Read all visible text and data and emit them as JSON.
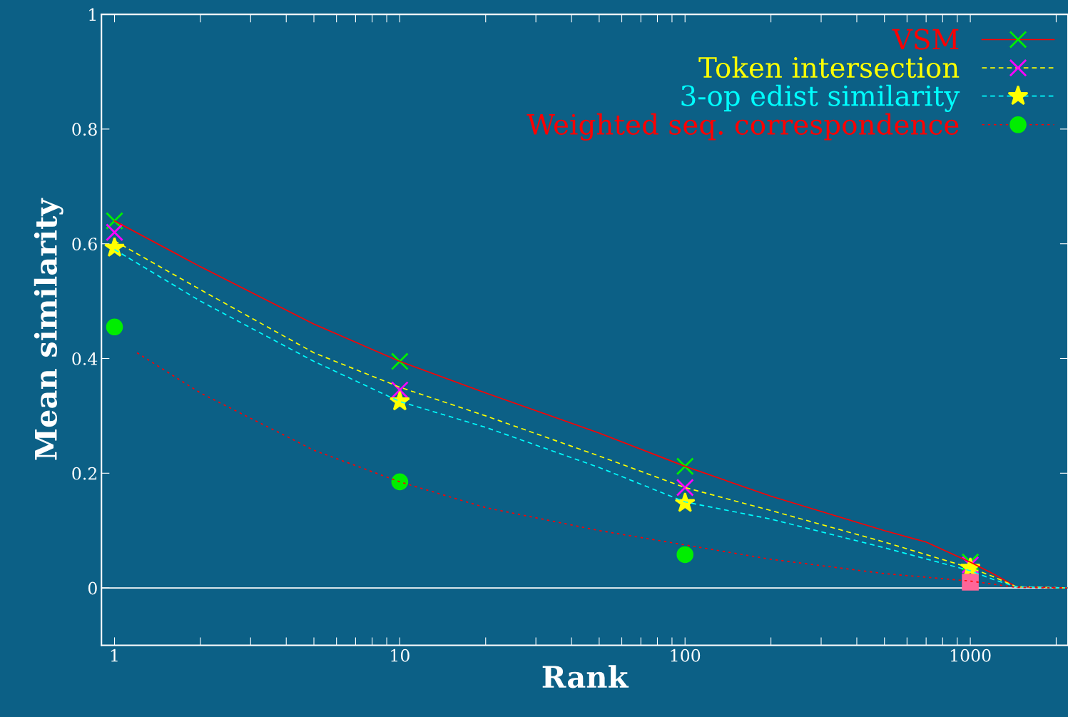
{
  "chart_data": {
    "type": "line",
    "xlabel": "Rank",
    "ylabel": "Mean similarity",
    "log": "x",
    "xlim": [
      0.9,
      2200
    ],
    "ylim": [
      -0.1,
      1
    ],
    "xticks": [
      1,
      {
        "value": 2,
        "label": null
      },
      {
        "value": 3,
        "label": null
      },
      {
        "value": 4,
        "label": null
      },
      {
        "value": 5,
        "label": null
      },
      {
        "value": 6,
        "label": null
      },
      {
        "value": 7,
        "label": null
      },
      {
        "value": 8,
        "label": null
      },
      {
        "value": 9,
        "label": null
      },
      10,
      {
        "value": 20,
        "label": null
      },
      {
        "value": 30,
        "label": null
      },
      {
        "value": 40,
        "label": null
      },
      {
        "value": 50,
        "label": null
      },
      {
        "value": 60,
        "label": null
      },
      {
        "value": 70,
        "label": null
      },
      {
        "value": 80,
        "label": null
      },
      {
        "value": 90,
        "label": null
      },
      100,
      {
        "value": 200,
        "label": null
      },
      {
        "value": 300,
        "label": null
      },
      {
        "value": 400,
        "label": null
      },
      {
        "value": 500,
        "label": null
      },
      {
        "value": 600,
        "label": null
      },
      {
        "value": 700,
        "label": null
      },
      {
        "value": 800,
        "label": null
      },
      {
        "value": 900,
        "label": null
      },
      1000,
      {
        "value": 2000,
        "label": null
      }
    ],
    "yticks": [
      0,
      0.2,
      0.4,
      0.6,
      0.8,
      1
    ],
    "grid": false,
    "legend": "top right",
    "ref_lines": [
      {
        "axis": "y",
        "value": 0,
        "color": "#ffffff"
      }
    ],
    "series": [
      {
        "color": "#ff0000",
        "line_style": "solid",
        "x": [
          1,
          2,
          5,
          10,
          20,
          50,
          100,
          200,
          500,
          700,
          1000,
          1200,
          1450,
          2200
        ],
        "values": [
          0.64,
          0.56,
          0.46,
          0.395,
          0.34,
          0.27,
          0.212,
          0.16,
          0.1,
          0.08,
          0.045,
          0.025,
          0.002,
          0
        ]
      },
      {
        "type": "scatter",
        "name": "VSM",
        "color": "#00ee00",
        "marker": "cross",
        "x": [
          1,
          10,
          100,
          1000
        ],
        "values": [
          0.64,
          0.395,
          0.212,
          0.045
        ]
      },
      {
        "color": "#ffff00",
        "line_style": "dashed",
        "x": [
          1,
          2,
          5,
          10,
          20,
          50,
          100,
          200,
          500,
          1000,
          1200,
          1450,
          2200
        ],
        "values": [
          0.605,
          0.52,
          0.41,
          0.35,
          0.3,
          0.23,
          0.175,
          0.135,
          0.08,
          0.035,
          0.02,
          0.002,
          0
        ]
      },
      {
        "type": "scatter",
        "name": "Token intersection",
        "color": "#ff00ff",
        "marker": "cross",
        "x": [
          1,
          10,
          100,
          1000
        ],
        "values": [
          0.62,
          0.345,
          0.175,
          0.04
        ]
      },
      {
        "color": "#00ffff",
        "line_style": "dashed",
        "x": [
          1,
          2,
          5,
          10,
          20,
          50,
          100,
          200,
          500,
          1000,
          1200,
          1450,
          2200
        ],
        "values": [
          0.59,
          0.5,
          0.395,
          0.325,
          0.28,
          0.21,
          0.15,
          0.12,
          0.07,
          0.03,
          0.015,
          0.002,
          0
        ]
      },
      {
        "type": "scatter",
        "name": "3-op edist similarity",
        "color": "#ffff00",
        "marker": "star",
        "x": [
          1,
          10,
          100,
          1000
        ],
        "values": [
          0.593,
          0.325,
          0.148,
          0.035
        ]
      },
      {
        "color": "#ff0000",
        "line_style": "dotted",
        "x": [
          1.2,
          2,
          5,
          10,
          20,
          50,
          100,
          200,
          500,
          1000,
          1450,
          2200
        ],
        "values": [
          0.41,
          0.34,
          0.24,
          0.185,
          0.14,
          0.1,
          0.075,
          0.05,
          0.025,
          0.012,
          0.001,
          0
        ]
      },
      {
        "type": "scatter",
        "name": "Weighted seq. correspondence",
        "color": "#00ee00",
        "marker": "circle",
        "x": [
          1,
          10,
          100
        ],
        "values": [
          0.455,
          0.185,
          0.058
        ]
      },
      {
        "type": "scatter",
        "color": "#ff6699",
        "marker": "square",
        "x": [
          1000
        ],
        "values": [
          0.01
        ]
      }
    ]
  }
}
